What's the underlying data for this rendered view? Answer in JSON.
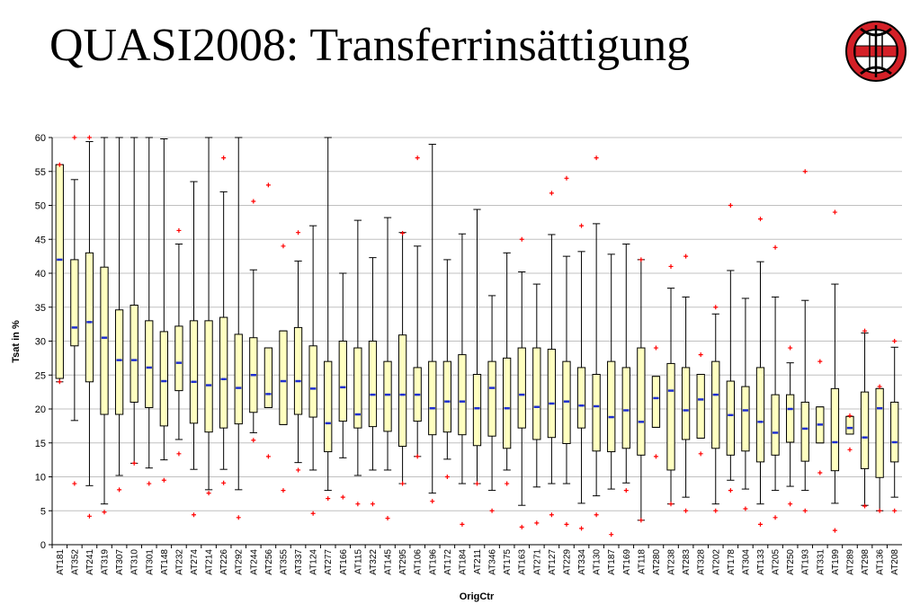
{
  "title": "QUASI2008: Transferrinsättigung",
  "logo_icon": "austrian-emblem-icon",
  "colors": {
    "box_fill": "#FFFFC0",
    "box_stroke": "#000000",
    "median": "#1F2FD0",
    "outlier": "#FF0000",
    "grid": "#C0C0C0",
    "logo_red": "#D42027"
  },
  "chart_data": {
    "type": "boxplot",
    "xlabel": "OrigCtr",
    "ylabel": "Tsat in %",
    "ylim": [
      0,
      60
    ],
    "yticks": [
      0,
      5,
      10,
      15,
      20,
      25,
      30,
      35,
      40,
      45,
      50,
      55,
      60
    ],
    "grid": true,
    "series": [
      {
        "cat": "AT181",
        "min": 24,
        "q1": 24.5,
        "med": 42,
        "q3": 56,
        "max": 56,
        "out": [
          56,
          24
        ]
      },
      {
        "cat": "AT352",
        "min": 18.3,
        "q1": 29.3,
        "med": 32,
        "q3": 42,
        "max": 53.8,
        "out": [
          60,
          9
        ]
      },
      {
        "cat": "AT241",
        "min": 8.7,
        "q1": 24,
        "med": 32.8,
        "q3": 43,
        "max": 59.4,
        "out": [
          60,
          4.2
        ]
      },
      {
        "cat": "AT319",
        "min": 6,
        "q1": 19.2,
        "med": 30.5,
        "q3": 40.9,
        "max": 60,
        "out": [
          4.8
        ]
      },
      {
        "cat": "AT307",
        "min": 10.2,
        "q1": 19.2,
        "med": 27.2,
        "q3": 34.6,
        "max": 60,
        "out": [
          8.1
        ]
      },
      {
        "cat": "AT310",
        "min": 12,
        "q1": 21,
        "med": 27.2,
        "q3": 35.3,
        "max": 60,
        "out": [
          12
        ]
      },
      {
        "cat": "AT301",
        "min": 11.3,
        "q1": 20.2,
        "med": 26.1,
        "q3": 33,
        "max": 60,
        "out": [
          9
        ]
      },
      {
        "cat": "AT148",
        "min": 12.5,
        "q1": 17.5,
        "med": 24.1,
        "q3": 31.4,
        "max": 59.8,
        "out": [
          9.5
        ]
      },
      {
        "cat": "AT232",
        "min": 15.5,
        "q1": 22.7,
        "med": 26.8,
        "q3": 32.2,
        "max": 44.3,
        "out": [
          46.3,
          13.4
        ]
      },
      {
        "cat": "AT274",
        "min": 11.1,
        "q1": 17.9,
        "med": 24,
        "q3": 33,
        "max": 53.5,
        "out": [
          4.4
        ]
      },
      {
        "cat": "AT214",
        "min": 8.1,
        "q1": 16.6,
        "med": 23.5,
        "q3": 33,
        "max": 60,
        "out": [
          7.6
        ]
      },
      {
        "cat": "AT226",
        "min": 11.1,
        "q1": 17.2,
        "med": 24.4,
        "q3": 33.5,
        "max": 52,
        "out": [
          57,
          9.1
        ]
      },
      {
        "cat": "AT292",
        "min": 8.1,
        "q1": 17.8,
        "med": 23.1,
        "q3": 31,
        "max": 60,
        "out": [
          4
        ]
      },
      {
        "cat": "AT244",
        "min": 16.5,
        "q1": 19.5,
        "med": 25,
        "q3": 30.5,
        "max": 40.5,
        "out": [
          50.6,
          15.4
        ]
      },
      {
        "cat": "AT256",
        "min": 20.2,
        "q1": 20.2,
        "med": 22.2,
        "q3": 29,
        "max": 29,
        "out": [
          53,
          13
        ]
      },
      {
        "cat": "AT355",
        "min": 17.7,
        "q1": 17.7,
        "med": 24.1,
        "q3": 31.5,
        "max": 31.5,
        "out": [
          44,
          8
        ]
      },
      {
        "cat": "AT337",
        "min": 12.1,
        "q1": 19.2,
        "med": 24.1,
        "q3": 32,
        "max": 41.8,
        "out": [
          46,
          11
        ]
      },
      {
        "cat": "AT124",
        "min": 11,
        "q1": 18.8,
        "med": 23,
        "q3": 29.3,
        "max": 47,
        "out": [
          4.6
        ]
      },
      {
        "cat": "AT277",
        "min": 8,
        "q1": 13.7,
        "med": 17.9,
        "q3": 27,
        "max": 60,
        "out": [
          6.8
        ]
      },
      {
        "cat": "AT166",
        "min": 12.8,
        "q1": 18.2,
        "med": 23.2,
        "q3": 30,
        "max": 40,
        "out": [
          7
        ]
      },
      {
        "cat": "AT115",
        "min": 10.2,
        "q1": 17.2,
        "med": 19.2,
        "q3": 29,
        "max": 47.8,
        "out": [
          6
        ]
      },
      {
        "cat": "AT322",
        "min": 11,
        "q1": 17.4,
        "med": 22.1,
        "q3": 30,
        "max": 42.3,
        "out": [
          6
        ]
      },
      {
        "cat": "AT145",
        "min": 11,
        "q1": 16.7,
        "med": 22.1,
        "q3": 27,
        "max": 48.2,
        "out": [
          3.9
        ]
      },
      {
        "cat": "AT295",
        "min": 9,
        "q1": 14.5,
        "med": 22.1,
        "q3": 30.9,
        "max": 46,
        "out": [
          45.9,
          9
        ]
      },
      {
        "cat": "AT106",
        "min": 13,
        "q1": 18.2,
        "med": 22.1,
        "q3": 26.1,
        "max": 44,
        "out": [
          57,
          13
        ]
      },
      {
        "cat": "AT196",
        "min": 7.6,
        "q1": 16.2,
        "med": 20.1,
        "q3": 27,
        "max": 59,
        "out": [
          6.4
        ]
      },
      {
        "cat": "AT172",
        "min": 12.6,
        "q1": 16.6,
        "med": 21.1,
        "q3": 27,
        "max": 42,
        "out": [
          10
        ]
      },
      {
        "cat": "AT184",
        "min": 9,
        "q1": 16.2,
        "med": 21.1,
        "q3": 28,
        "max": 45.8,
        "out": [
          3
        ]
      },
      {
        "cat": "AT211",
        "min": 9,
        "q1": 14.6,
        "med": 20.1,
        "q3": 25.1,
        "max": 49.4,
        "out": [
          9
        ]
      },
      {
        "cat": "AT346",
        "min": 8,
        "q1": 16,
        "med": 23.1,
        "q3": 27,
        "max": 36.7,
        "out": [
          5
        ]
      },
      {
        "cat": "AT175",
        "min": 11,
        "q1": 14.2,
        "med": 20.1,
        "q3": 27.5,
        "max": 43,
        "out": [
          9
        ]
      },
      {
        "cat": "AT163",
        "min": 5.8,
        "q1": 17.2,
        "med": 22.1,
        "q3": 29,
        "max": 40.2,
        "out": [
          45,
          2.6
        ]
      },
      {
        "cat": "AT271",
        "min": 8.5,
        "q1": 15.5,
        "med": 20.3,
        "q3": 29,
        "max": 38.4,
        "out": [
          3.2
        ]
      },
      {
        "cat": "AT127",
        "min": 9,
        "q1": 15.8,
        "med": 20.8,
        "q3": 28.8,
        "max": 45.7,
        "out": [
          51.8,
          4.4
        ]
      },
      {
        "cat": "AT229",
        "min": 9,
        "q1": 14.9,
        "med": 21.1,
        "q3": 27,
        "max": 42.5,
        "out": [
          54,
          3
        ]
      },
      {
        "cat": "AT334",
        "min": 6.1,
        "q1": 17.2,
        "med": 20.5,
        "q3": 26.1,
        "max": 43.2,
        "out": [
          47,
          2.4
        ]
      },
      {
        "cat": "AT130",
        "min": 7.2,
        "q1": 13.8,
        "med": 20.4,
        "q3": 25.1,
        "max": 47.3,
        "out": [
          57,
          4.4
        ]
      },
      {
        "cat": "AT187",
        "min": 8.2,
        "q1": 13.7,
        "med": 18.8,
        "q3": 27,
        "max": 42.8,
        "out": [
          1.5
        ]
      },
      {
        "cat": "AT169",
        "min": 9.1,
        "q1": 14.2,
        "med": 19.8,
        "q3": 26.1,
        "max": 44.3,
        "out": [
          8
        ]
      },
      {
        "cat": "AT118",
        "min": 3.6,
        "q1": 13.2,
        "med": 18.1,
        "q3": 29,
        "max": 42,
        "out": [
          42,
          3.6
        ]
      },
      {
        "cat": "AT280",
        "min": 17.3,
        "q1": 17.3,
        "med": 21.6,
        "q3": 24.8,
        "max": 24.8,
        "out": [
          29,
          13
        ]
      },
      {
        "cat": "AT238",
        "min": 6,
        "q1": 11,
        "med": 22.7,
        "q3": 26.7,
        "max": 37.8,
        "out": [
          41,
          6
        ]
      },
      {
        "cat": "AT283",
        "min": 7,
        "q1": 15.5,
        "med": 19.8,
        "q3": 26.1,
        "max": 36.5,
        "out": [
          42.5,
          5
        ]
      },
      {
        "cat": "AT328",
        "min": 15.7,
        "q1": 15.7,
        "med": 21.4,
        "q3": 25.1,
        "max": 25.1,
        "out": [
          28,
          13.4
        ]
      },
      {
        "cat": "AT202",
        "min": 6,
        "q1": 14.2,
        "med": 22.1,
        "q3": 27,
        "max": 34,
        "out": [
          35,
          5
        ]
      },
      {
        "cat": "AT178",
        "min": 9.5,
        "q1": 13.2,
        "med": 19.1,
        "q3": 24.1,
        "max": 40.4,
        "out": [
          50,
          8
        ]
      },
      {
        "cat": "AT304",
        "min": 8.2,
        "q1": 13.8,
        "med": 19.8,
        "q3": 23.3,
        "max": 36.3,
        "out": [
          5.3
        ]
      },
      {
        "cat": "AT133",
        "min": 6,
        "q1": 12.2,
        "med": 18.1,
        "q3": 26.1,
        "max": 41.7,
        "out": [
          48,
          3
        ]
      },
      {
        "cat": "AT205",
        "min": 8,
        "q1": 13.2,
        "med": 16.5,
        "q3": 22.1,
        "max": 36.5,
        "out": [
          43.8,
          4
        ]
      },
      {
        "cat": "AT250",
        "min": 8.6,
        "q1": 15.1,
        "med": 20,
        "q3": 22.1,
        "max": 26.8,
        "out": [
          29,
          6
        ]
      },
      {
        "cat": "AT193",
        "min": 8,
        "q1": 12.3,
        "med": 17.1,
        "q3": 21,
        "max": 36,
        "out": [
          55,
          5
        ]
      },
      {
        "cat": "AT331",
        "min": 15,
        "q1": 15,
        "med": 17.7,
        "q3": 20.3,
        "max": 20.3,
        "out": [
          27,
          10.6
        ]
      },
      {
        "cat": "AT199",
        "min": 6.1,
        "q1": 10.9,
        "med": 15.1,
        "q3": 23,
        "max": 38.4,
        "out": [
          49,
          2.1
        ]
      },
      {
        "cat": "AT289",
        "min": 16.3,
        "q1": 16.3,
        "med": 17.2,
        "q3": 18.9,
        "max": 18.9,
        "out": [
          19,
          14
        ]
      },
      {
        "cat": "AT298",
        "min": 5.8,
        "q1": 11.2,
        "med": 15.8,
        "q3": 22.5,
        "max": 31.2,
        "out": [
          31.5,
          5.7
        ]
      },
      {
        "cat": "AT136",
        "min": 5,
        "q1": 9.9,
        "med": 20.1,
        "q3": 23,
        "max": 23,
        "out": [
          23.3,
          5
        ]
      },
      {
        "cat": "AT208",
        "min": 7,
        "q1": 12.2,
        "med": 15.1,
        "q3": 21,
        "max": 29.1,
        "out": [
          30,
          5
        ]
      }
    ]
  }
}
